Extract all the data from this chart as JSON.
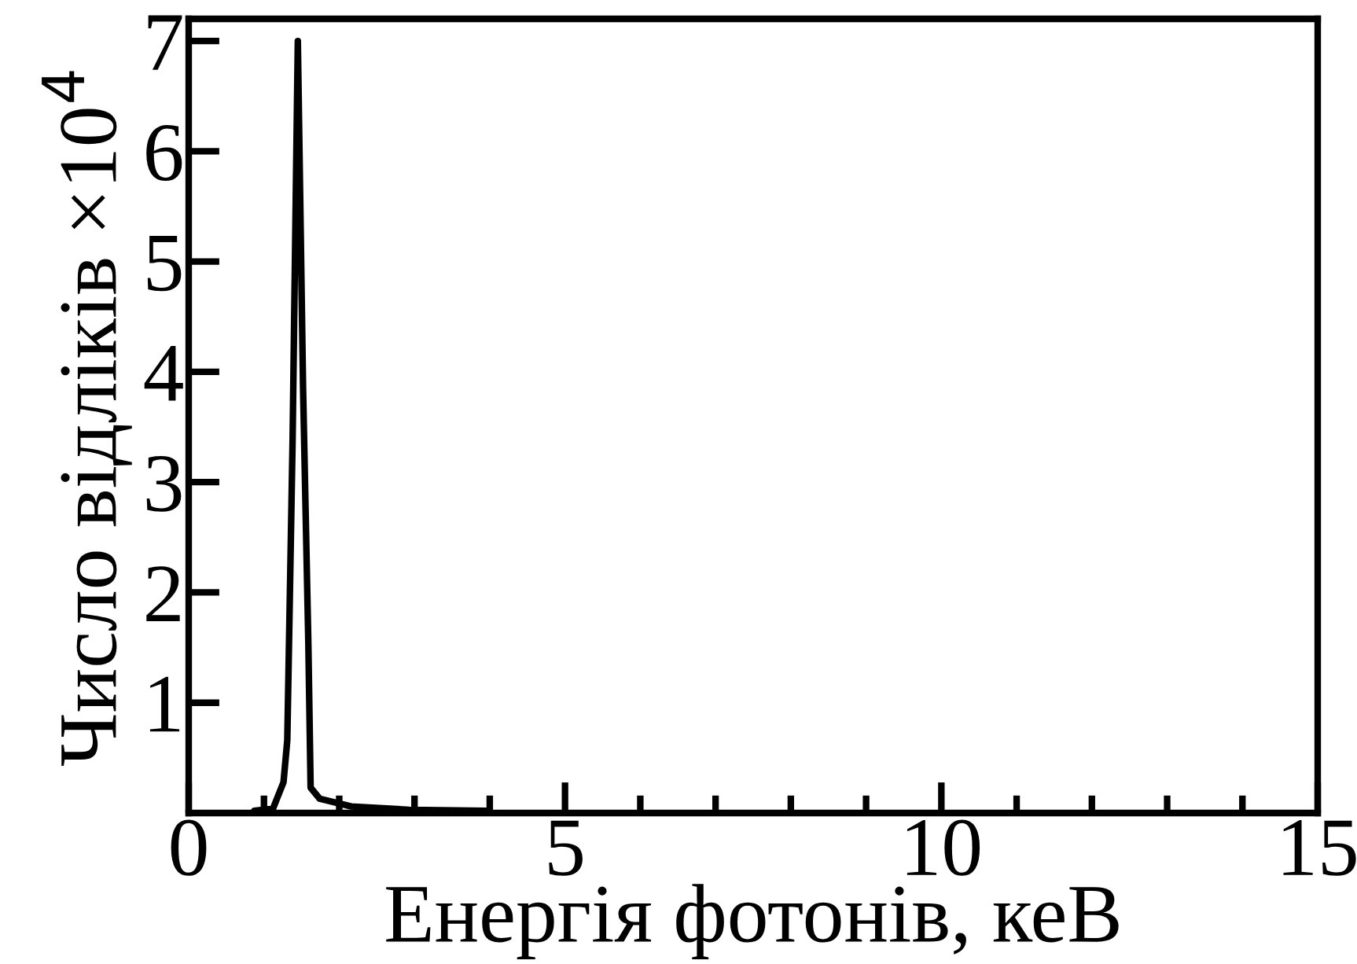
{
  "chart_data": {
    "type": "line",
    "xlabel": "Енергія фотонів, кеВ",
    "ylabel": "Число відліків ×10$^{4}$",
    "series": [
      {
        "color": "#000000",
        "x": [
          0.87,
          1.12,
          1.26,
          1.31,
          1.33,
          1.38,
          1.45,
          1.52,
          1.59,
          1.62,
          1.74,
          2.16,
          2.93,
          3.97
        ],
        "values": [
          0.02,
          0.04,
          0.28,
          0.66,
          1.43,
          3.36,
          7.0,
          3.84,
          1.53,
          0.23,
          0.13,
          0.06,
          0.03,
          0.02
        ]
      }
    ],
    "xlim": [
      0,
      15
    ],
    "ylim": [
      0,
      7.2
    ],
    "xticks": [
      0,
      {
        "value": 1,
        "label": null
      },
      {
        "value": 2,
        "label": null
      },
      {
        "value": 3,
        "label": null
      },
      {
        "value": 4,
        "label": null
      },
      5,
      {
        "value": 6,
        "label": null
      },
      {
        "value": 7,
        "label": null
      },
      {
        "value": 8,
        "label": null
      },
      {
        "value": 9,
        "label": null
      },
      10,
      {
        "value": 11,
        "label": null
      },
      {
        "value": 12,
        "label": null
      },
      {
        "value": 13,
        "label": null
      },
      {
        "value": 14,
        "label": null
      },
      15
    ],
    "yticks": [
      1,
      2,
      3,
      4,
      5,
      6,
      7
    ],
    "grid": false,
    "legend": false,
    "marker": "none",
    "line_style": "solid"
  }
}
